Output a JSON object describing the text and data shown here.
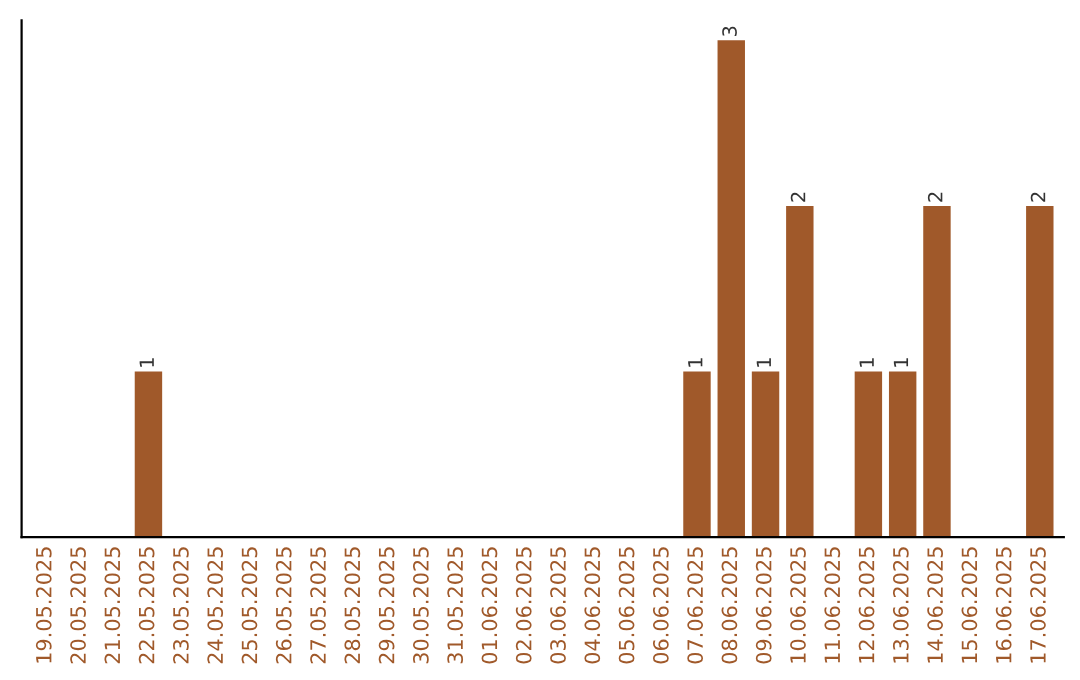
{
  "chart_data": {
    "type": "bar",
    "categories": [
      "19.05.2025",
      "20.05.2025",
      "21.05.2025",
      "22.05.2025",
      "23.05.2025",
      "24.05.2025",
      "25.05.2025",
      "26.05.2025",
      "27.05.2025",
      "28.05.2025",
      "29.05.2025",
      "30.05.2025",
      "31.05.2025",
      "01.06.2025",
      "02.06.2025",
      "03.06.2025",
      "04.06.2025",
      "05.06.2025",
      "06.06.2025",
      "07.06.2025",
      "08.06.2025",
      "09.06.2025",
      "10.06.2025",
      "11.06.2025",
      "12.06.2025",
      "13.06.2025",
      "14.06.2025",
      "15.06.2025",
      "16.06.2025",
      "17.06.2025"
    ],
    "values": [
      0,
      0,
      0,
      1,
      0,
      0,
      0,
      0,
      0,
      0,
      0,
      0,
      0,
      0,
      0,
      0,
      0,
      0,
      0,
      1,
      3,
      1,
      2,
      0,
      1,
      1,
      2,
      0,
      0,
      2
    ],
    "value_labels": [
      null,
      null,
      null,
      "1",
      null,
      null,
      null,
      null,
      null,
      null,
      null,
      null,
      null,
      null,
      null,
      null,
      null,
      null,
      null,
      "1",
      "3",
      "1",
      "2",
      null,
      "1",
      "1",
      "2",
      null,
      null,
      "2"
    ],
    "color": "#a0592a",
    "tick_labels": "x"
  }
}
